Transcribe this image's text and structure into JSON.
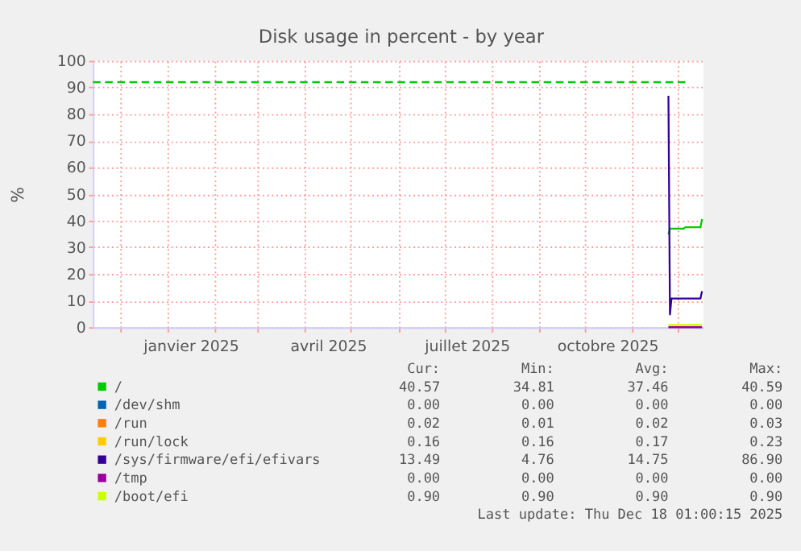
{
  "chart_data": {
    "type": "line",
    "title": "Disk usage in percent - by year",
    "ylabel": "%",
    "xlim": [
      "2024-11-13",
      "2025-12-18"
    ],
    "xticks": [
      {
        "value": "2024-12-01",
        "label": null
      },
      {
        "value": "2025-01-01",
        "label": null
      },
      {
        "value": "2025-01-16",
        "label": "janvier 2025"
      },
      {
        "value": "2025-02-01",
        "label": null
      },
      {
        "value": "2025-03-01",
        "label": null
      },
      {
        "value": "2025-04-01",
        "label": null
      },
      {
        "value": "2025-04-16",
        "label": "avril 2025"
      },
      {
        "value": "2025-05-01",
        "label": null
      },
      {
        "value": "2025-06-01",
        "label": null
      },
      {
        "value": "2025-07-01",
        "label": null
      },
      {
        "value": "2025-07-16",
        "label": "juillet 2025"
      },
      {
        "value": "2025-08-01",
        "label": null
      },
      {
        "value": "2025-09-01",
        "label": null
      },
      {
        "value": "2025-10-01",
        "label": null
      },
      {
        "value": "2025-10-16",
        "label": "octobre 2025"
      },
      {
        "value": "2025-11-01",
        "label": null
      },
      {
        "value": "2025-12-01",
        "label": null
      }
    ],
    "ylim": [
      0,
      100
    ],
    "yticks": [
      0,
      10,
      20,
      30,
      40,
      50,
      60,
      70,
      80,
      90,
      100
    ],
    "grid": true,
    "legend": "bottom",
    "series": [
      {
        "name": "/",
        "color": "#00cc00",
        "x": [
          "2025-11-25",
          "2025-11-26",
          "2025-12-05",
          "2025-12-06",
          "2025-12-16",
          "2025-12-17"
        ],
        "values": [
          34.8,
          37,
          37,
          37.5,
          37.5,
          40.6
        ]
      },
      {
        "name": "/dev/shm",
        "color": "#0066b3"
      },
      {
        "name": "/run",
        "color": "#ff8000"
      },
      {
        "name": "/run/lock",
        "color": "#ffcc00",
        "x": [
          "2025-11-25",
          "2025-12-17"
        ],
        "values": [
          0.2,
          0.2
        ]
      },
      {
        "name": "/sys/firmware/efi/efivars",
        "color": "#330099",
        "x": [
          "2025-11-25",
          "2025-11-26",
          "2025-11-27",
          "2025-12-16",
          "2025-12-17"
        ],
        "values": [
          86.9,
          4.8,
          10.8,
          10.8,
          13.5
        ]
      },
      {
        "name": "/tmp",
        "color": "#990099",
        "x": [
          "2025-11-25",
          "2025-12-17"
        ],
        "values": [
          0,
          0
        ]
      },
      {
        "name": "/boot/efi",
        "color": "#ccff00",
        "x": [
          "2025-11-25",
          "2025-12-17"
        ],
        "values": [
          0.9,
          0.9
        ]
      }
    ],
    "ref_lines": [
      {
        "axis": "y",
        "value": 92,
        "label": null,
        "color": "#00cc00",
        "line_style": "dashed"
      }
    ],
    "annotations": [
      "Cur:",
      "Min:",
      "Avg:",
      "Max:",
      "40.57",
      "34.81",
      "37.46",
      "40.59",
      "0.00",
      "0.00",
      "0.00",
      "0.00",
      "0.02",
      "0.01",
      "0.02",
      "0.03",
      "0.16",
      "0.16",
      "0.17",
      "0.23",
      "13.49",
      "4.76",
      "14.75",
      "86.90",
      "0.00",
      "0.00",
      "0.00",
      "0.00",
      "0.90",
      "0.90",
      "0.90",
      "0.90",
      "Last update: Thu Dec 18 01:00:15 2025"
    ]
  }
}
